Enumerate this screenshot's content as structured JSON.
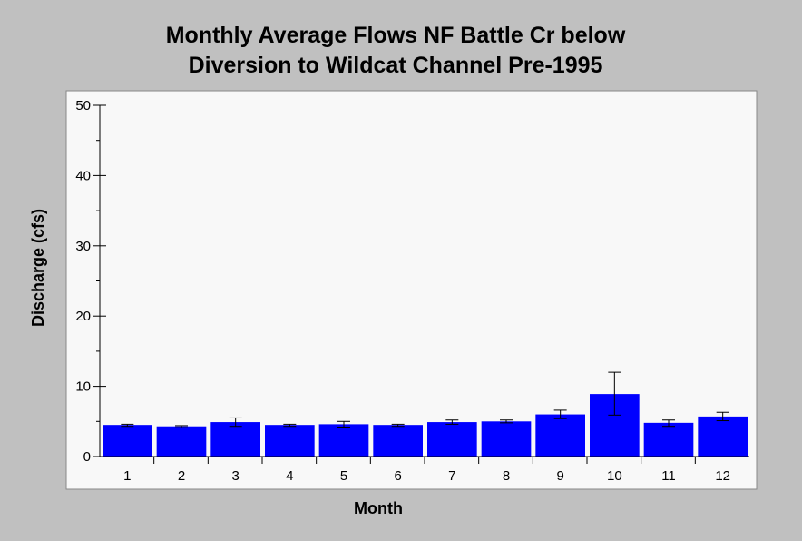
{
  "chart_data": {
    "type": "bar",
    "title_line1": "Monthly Average Flows NF Battle Cr below",
    "title_line2": "Diversion to Wildcat Channel Pre-1995",
    "xlabel": "Month",
    "ylabel": "Discharge (cfs)",
    "ylim": [
      0,
      50
    ],
    "y_ticks": [
      0,
      10,
      20,
      30,
      40,
      50
    ],
    "categories": [
      "1",
      "2",
      "3",
      "4",
      "5",
      "6",
      "7",
      "8",
      "9",
      "10",
      "11",
      "12"
    ],
    "values": [
      4.5,
      4.3,
      4.9,
      4.5,
      4.6,
      4.5,
      4.9,
      5.0,
      6.0,
      8.9,
      4.8,
      5.7
    ],
    "error_low": [
      4.3,
      4.1,
      4.3,
      4.3,
      4.2,
      4.3,
      4.6,
      4.8,
      5.4,
      5.9,
      4.3,
      5.1
    ],
    "error_high": [
      4.6,
      4.4,
      5.5,
      4.6,
      5.0,
      4.6,
      5.2,
      5.2,
      6.6,
      12.0,
      5.2,
      6.3
    ],
    "bar_color": "#0000ff",
    "plot_background": "#f8f8f8",
    "page_background": "#c0c0c0",
    "grid": false,
    "legend": "none"
  }
}
